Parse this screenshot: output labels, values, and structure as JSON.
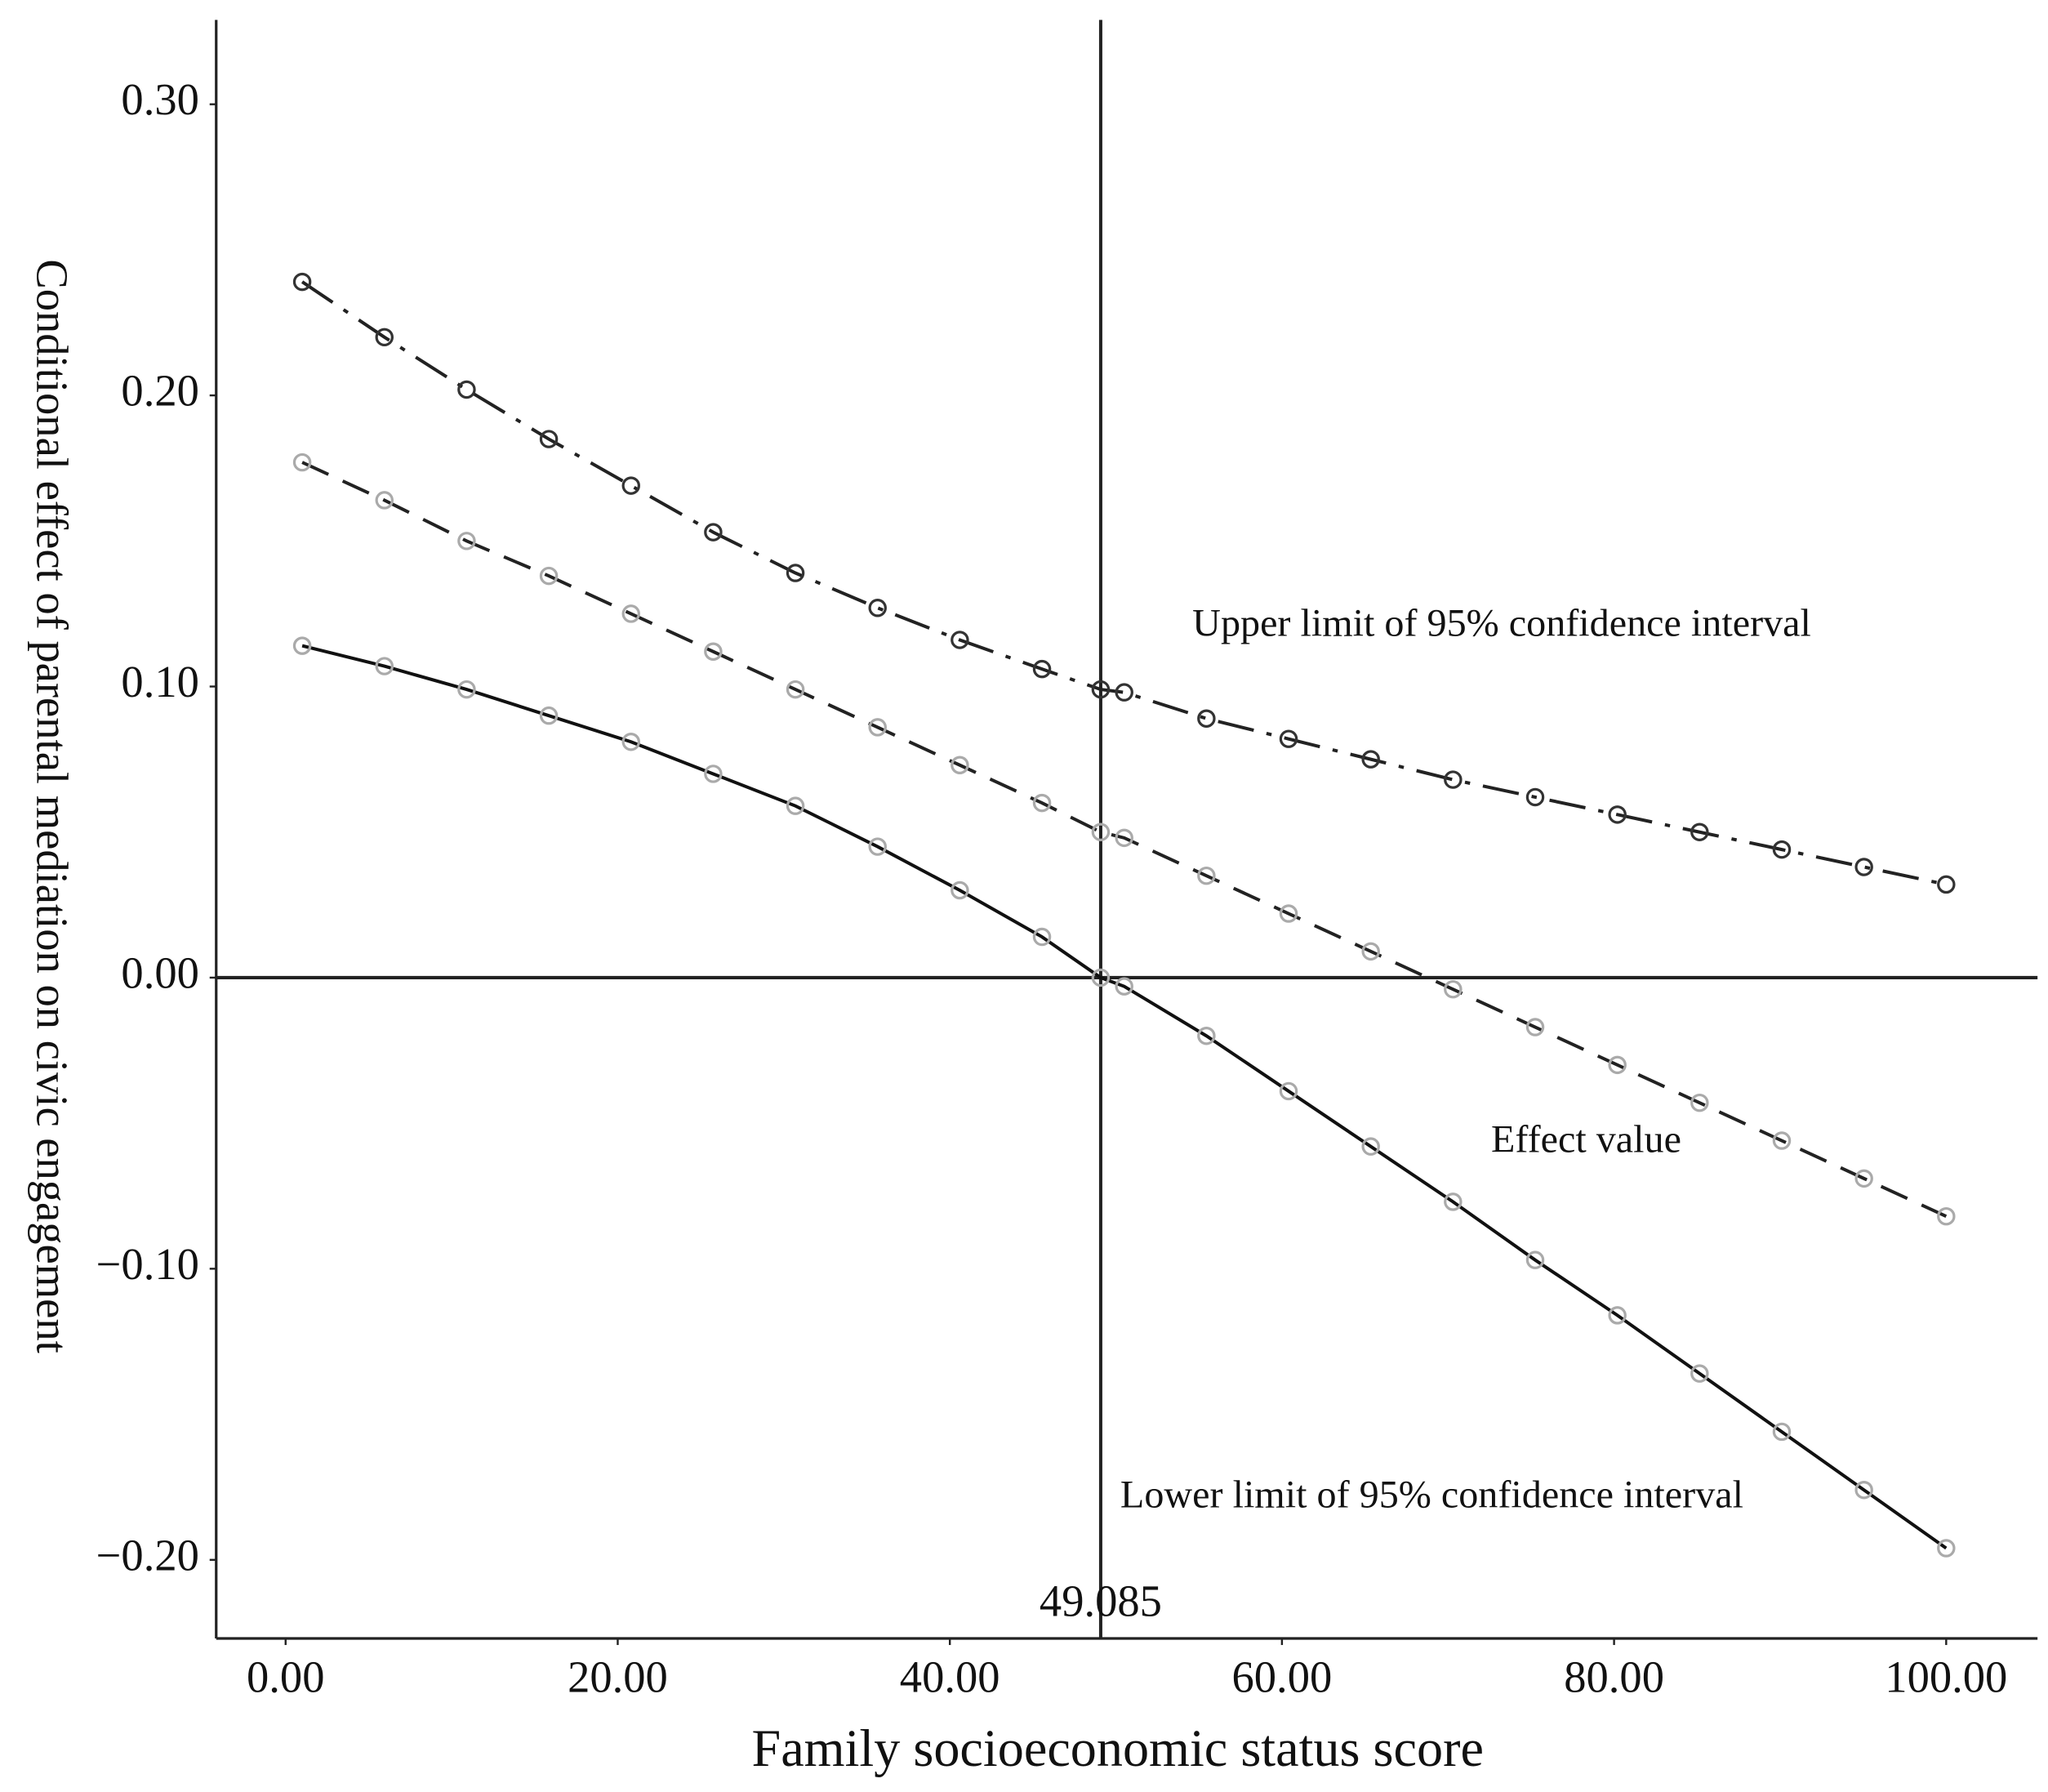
{
  "chart_data": {
    "type": "line",
    "x_label": "Family socioeconomic status score",
    "y_label": "Conditional effect of parental mediation on civic engagement",
    "x": [
      1,
      5.95,
      10.9,
      15.85,
      20.8,
      25.75,
      30.7,
      35.65,
      40.6,
      45.55,
      49.085,
      50.5,
      55.45,
      60.4,
      65.35,
      70.3,
      75.25,
      80.2,
      85.15,
      90.1,
      95.05,
      100
    ],
    "series": [
      {
        "name": "Upper limit of 95% confidence interval",
        "color": "#222222",
        "marker_color": "#333333",
        "line_style": "dashdot",
        "values": [
          0.239,
          0.22,
          0.202,
          0.185,
          0.169,
          0.153,
          0.139,
          0.127,
          0.116,
          0.106,
          0.099,
          0.098,
          0.089,
          0.082,
          0.075,
          0.068,
          0.062,
          0.056,
          0.05,
          0.044,
          0.038,
          0.032
        ]
      },
      {
        "name": "Effect value",
        "color": "#222222",
        "marker_color": "#aaaaaa",
        "line_style": "dashed",
        "values": [
          0.177,
          0.164,
          0.15,
          0.138,
          0.125,
          0.112,
          0.099,
          0.086,
          0.073,
          0.06,
          0.05,
          0.048,
          0.035,
          0.022,
          0.009,
          -0.004,
          -0.017,
          -0.03,
          -0.043,
          -0.056,
          -0.069,
          -0.082
        ]
      },
      {
        "name": "Lower limit of 95% confidence interval",
        "color": "#111111",
        "marker_color": "#aaaaaa",
        "line_style": "solid",
        "values": [
          0.114,
          0.107,
          0.099,
          0.09,
          0.081,
          0.07,
          0.059,
          0.045,
          0.03,
          0.014,
          0.0,
          -0.003,
          -0.02,
          -0.039,
          -0.058,
          -0.077,
          -0.097,
          -0.116,
          -0.136,
          -0.156,
          -0.176,
          -0.196
        ]
      }
    ],
    "xlim": [
      -4.18,
      105.5
    ],
    "ylim": [
      -0.227,
      0.329
    ],
    "xticks": [
      {
        "value": 0,
        "label": "0.00"
      },
      {
        "value": 20,
        "label": "20.00"
      },
      {
        "value": 40,
        "label": "40.00"
      },
      {
        "value": 60,
        "label": "60.00"
      },
      {
        "value": 80,
        "label": "80.00"
      },
      {
        "value": 100,
        "label": "100.00"
      }
    ],
    "yticks": [
      {
        "value": -0.2,
        "label": "−0.20"
      },
      {
        "value": -0.1,
        "label": "−0.10"
      },
      {
        "value": 0,
        "label": "0.00"
      },
      {
        "value": 0.1,
        "label": "0.10"
      },
      {
        "value": 0.2,
        "label": "0.20"
      },
      {
        "value": 0.3,
        "label": "0.30"
      }
    ],
    "vline": 49.085,
    "hline": 0,
    "grid": false
  }
}
